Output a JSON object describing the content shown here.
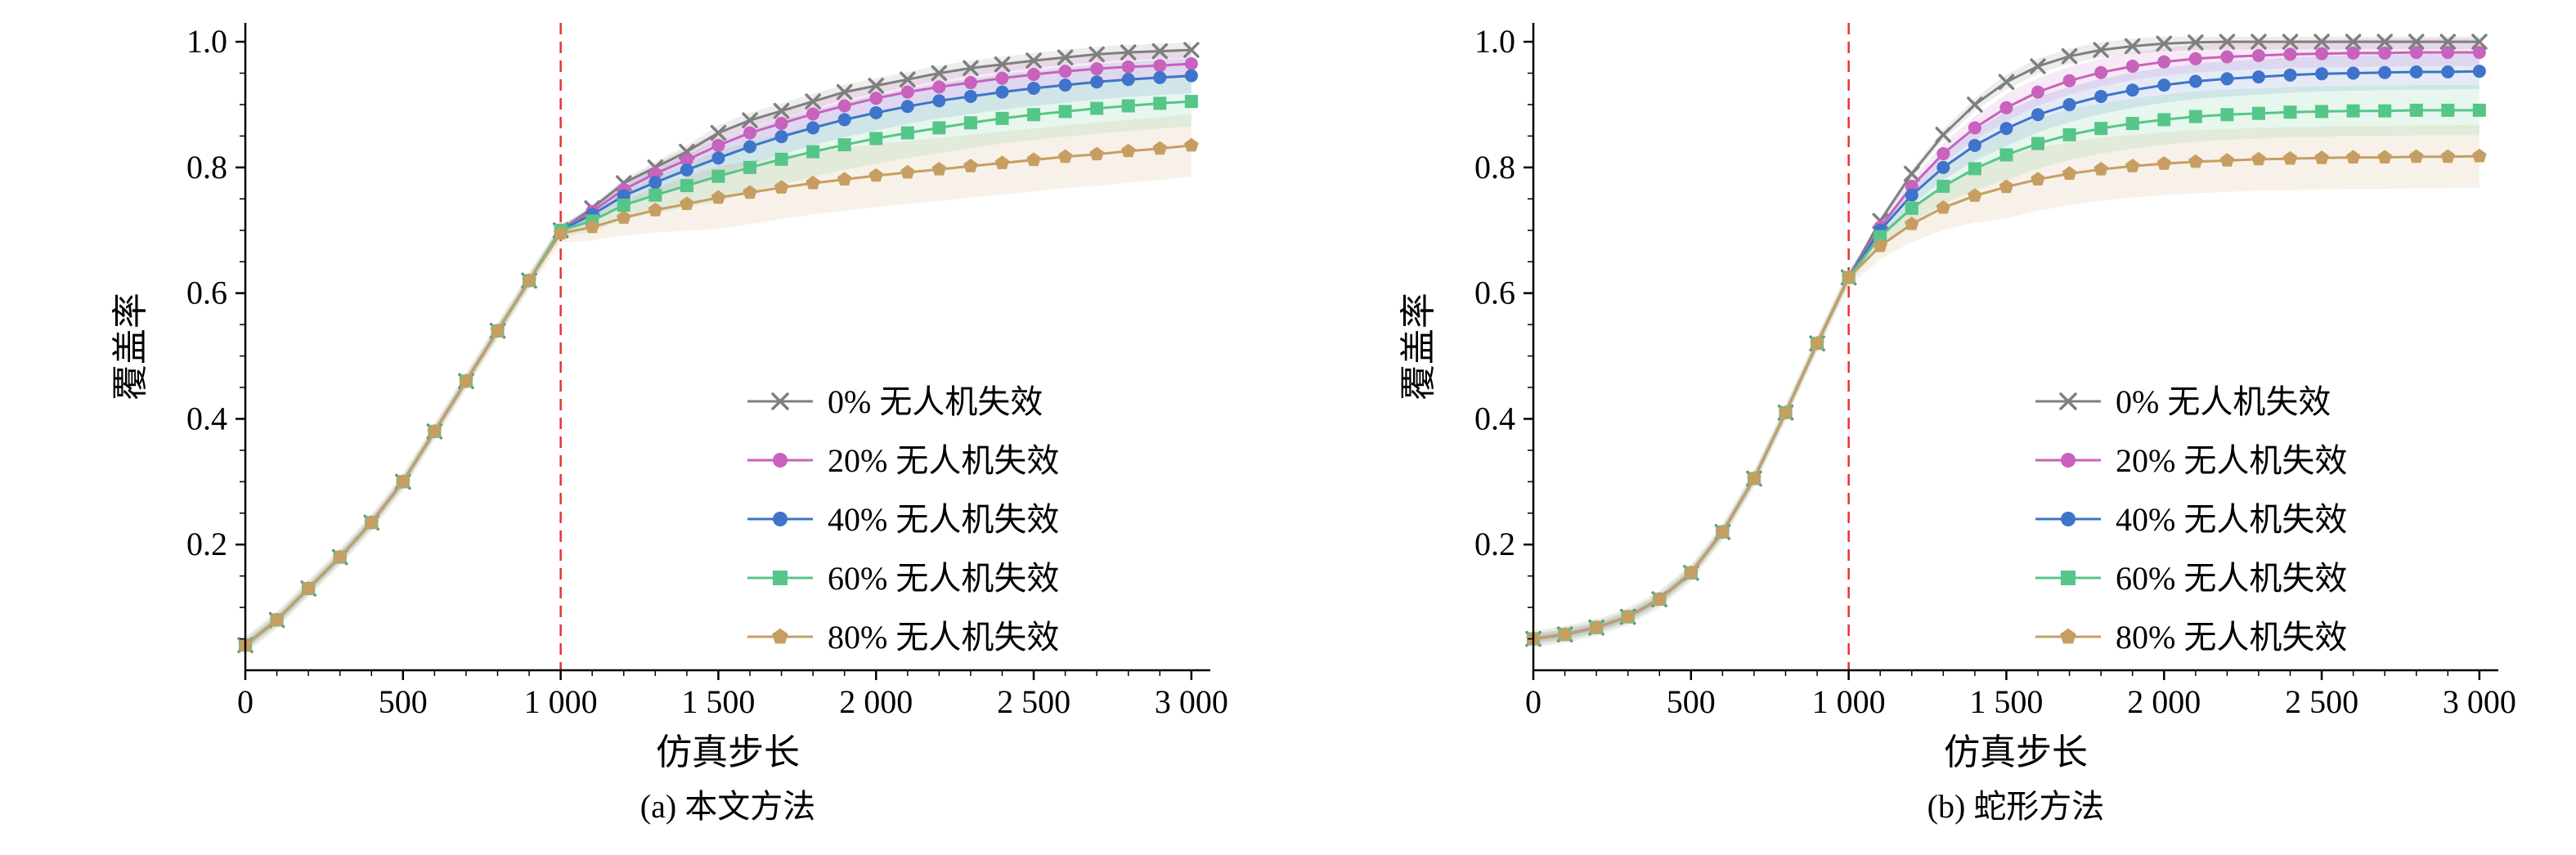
{
  "figure": {
    "background": "#ffffff"
  },
  "chart_data": [
    {
      "type": "line",
      "subtitle": "(a) 本文方法",
      "xlabel": "仿真步长",
      "ylabel": "覆盖率",
      "xlim": [
        0,
        3000
      ],
      "ylim": [
        0,
        1.0
      ],
      "xticks": [
        0,
        500,
        1000,
        1500,
        2000,
        2500,
        3000
      ],
      "xtick_labels": [
        "0",
        "500",
        "1 000",
        "1 500",
        "2 000",
        "2 500",
        "3 000"
      ],
      "yticks": [
        0.2,
        0.4,
        0.6,
        0.8,
        1.0
      ],
      "ytick_labels": [
        "0.2",
        "0.4",
        "0.6",
        "0.8",
        "1.0"
      ],
      "grid": false,
      "legend_position": "lower right",
      "vline": {
        "x": 1000,
        "color": "#e5332e",
        "style": "dashed"
      },
      "x": [
        0,
        100,
        200,
        300,
        400,
        500,
        600,
        700,
        800,
        900,
        1000,
        1100,
        1200,
        1300,
        1400,
        1500,
        1600,
        1700,
        1800,
        1900,
        2000,
        2100,
        2200,
        2300,
        2400,
        2500,
        2600,
        2700,
        2800,
        2900,
        3000
      ],
      "series": [
        {
          "name": "0% 无人机失效",
          "color": "#7f7f7f",
          "marker": "x",
          "band": 0.012,
          "values": [
            0.04,
            0.08,
            0.13,
            0.18,
            0.235,
            0.3,
            0.38,
            0.46,
            0.54,
            0.62,
            0.7,
            0.735,
            0.775,
            0.8,
            0.825,
            0.855,
            0.875,
            0.89,
            0.905,
            0.92,
            0.93,
            0.94,
            0.95,
            0.958,
            0.964,
            0.97,
            0.975,
            0.98,
            0.983,
            0.985,
            0.987
          ]
        },
        {
          "name": "20% 无人机失效",
          "color": "#c862bd",
          "marker": "circle",
          "band": 0.022,
          "values": [
            0.04,
            0.08,
            0.13,
            0.18,
            0.235,
            0.3,
            0.38,
            0.46,
            0.54,
            0.62,
            0.7,
            0.73,
            0.765,
            0.79,
            0.812,
            0.835,
            0.855,
            0.87,
            0.885,
            0.898,
            0.91,
            0.92,
            0.928,
            0.935,
            0.942,
            0.948,
            0.953,
            0.957,
            0.96,
            0.962,
            0.965
          ]
        },
        {
          "name": "40% 无人机失效",
          "color": "#3e74c9",
          "marker": "circle",
          "band": 0.028,
          "values": [
            0.04,
            0.08,
            0.13,
            0.18,
            0.235,
            0.3,
            0.38,
            0.46,
            0.54,
            0.62,
            0.7,
            0.725,
            0.755,
            0.776,
            0.796,
            0.815,
            0.833,
            0.849,
            0.863,
            0.876,
            0.887,
            0.897,
            0.906,
            0.913,
            0.92,
            0.926,
            0.931,
            0.936,
            0.94,
            0.943,
            0.946
          ]
        },
        {
          "name": "60% 无人机失效",
          "color": "#55c688",
          "marker": "square",
          "band": 0.04,
          "values": [
            0.04,
            0.08,
            0.13,
            0.18,
            0.235,
            0.3,
            0.38,
            0.46,
            0.54,
            0.62,
            0.7,
            0.715,
            0.74,
            0.756,
            0.771,
            0.786,
            0.8,
            0.813,
            0.825,
            0.836,
            0.846,
            0.855,
            0.863,
            0.871,
            0.878,
            0.884,
            0.889,
            0.894,
            0.898,
            0.902,
            0.905
          ]
        },
        {
          "name": "80% 无人机失效",
          "color": "#c79e62",
          "marker": "pentagon",
          "band": 0.05,
          "values": [
            0.04,
            0.08,
            0.13,
            0.18,
            0.235,
            0.3,
            0.38,
            0.46,
            0.54,
            0.62,
            0.695,
            0.705,
            0.72,
            0.732,
            0.742,
            0.752,
            0.76,
            0.768,
            0.775,
            0.781,
            0.787,
            0.792,
            0.797,
            0.802,
            0.807,
            0.812,
            0.817,
            0.821,
            0.826,
            0.83,
            0.835
          ]
        }
      ]
    },
    {
      "type": "line",
      "subtitle": "(b) 蛇形方法",
      "xlabel": "仿真步长",
      "ylabel": "覆盖率",
      "xlim": [
        0,
        3000
      ],
      "ylim": [
        0,
        1.0
      ],
      "xticks": [
        0,
        500,
        1000,
        1500,
        2000,
        2500,
        3000
      ],
      "xtick_labels": [
        "0",
        "500",
        "1 000",
        "1 500",
        "2 000",
        "2 500",
        "3 000"
      ],
      "yticks": [
        0.2,
        0.4,
        0.6,
        0.8,
        1.0
      ],
      "ytick_labels": [
        "0.2",
        "0.4",
        "0.6",
        "0.8",
        "1.0"
      ],
      "grid": false,
      "legend_position": "lower right",
      "vline": {
        "x": 1000,
        "color": "#e5332e",
        "style": "dashed"
      },
      "x": [
        0,
        100,
        200,
        300,
        400,
        500,
        600,
        700,
        800,
        900,
        1000,
        1100,
        1200,
        1300,
        1400,
        1500,
        1600,
        1700,
        1800,
        1900,
        2000,
        2100,
        2200,
        2300,
        2400,
        2500,
        2600,
        2700,
        2800,
        2900,
        3000
      ],
      "series": [
        {
          "name": "0% 无人机失效",
          "color": "#7f7f7f",
          "marker": "x",
          "band": 0.012,
          "values": [
            0.05,
            0.057,
            0.068,
            0.085,
            0.113,
            0.155,
            0.22,
            0.305,
            0.41,
            0.52,
            0.625,
            0.715,
            0.79,
            0.852,
            0.9,
            0.936,
            0.961,
            0.977,
            0.987,
            0.993,
            0.997,
            0.999,
            1.0,
            1.0,
            1.0,
            1.0,
            1.0,
            1.0,
            1.0,
            1.0,
            1.0
          ]
        },
        {
          "name": "20% 无人机失效",
          "color": "#c862bd",
          "marker": "circle",
          "band": 0.022,
          "values": [
            0.05,
            0.057,
            0.068,
            0.085,
            0.113,
            0.155,
            0.22,
            0.305,
            0.41,
            0.52,
            0.625,
            0.705,
            0.77,
            0.822,
            0.863,
            0.895,
            0.92,
            0.938,
            0.951,
            0.961,
            0.968,
            0.973,
            0.976,
            0.978,
            0.98,
            0.981,
            0.982,
            0.982,
            0.983,
            0.983,
            0.983
          ]
        },
        {
          "name": "40% 无人机失效",
          "color": "#3e74c9",
          "marker": "circle",
          "band": 0.028,
          "values": [
            0.05,
            0.057,
            0.068,
            0.085,
            0.113,
            0.155,
            0.22,
            0.305,
            0.41,
            0.52,
            0.625,
            0.7,
            0.756,
            0.8,
            0.835,
            0.862,
            0.884,
            0.9,
            0.913,
            0.923,
            0.931,
            0.937,
            0.941,
            0.944,
            0.947,
            0.949,
            0.95,
            0.951,
            0.952,
            0.952,
            0.953
          ]
        },
        {
          "name": "60% 无人机失效",
          "color": "#55c688",
          "marker": "square",
          "band": 0.04,
          "values": [
            0.05,
            0.057,
            0.068,
            0.085,
            0.113,
            0.155,
            0.22,
            0.305,
            0.41,
            0.52,
            0.625,
            0.69,
            0.735,
            0.77,
            0.798,
            0.82,
            0.838,
            0.852,
            0.862,
            0.87,
            0.876,
            0.881,
            0.884,
            0.886,
            0.888,
            0.889,
            0.89,
            0.89,
            0.891,
            0.891,
            0.891
          ]
        },
        {
          "name": "80% 无人机失效",
          "color": "#c79e62",
          "marker": "pentagon",
          "band": 0.05,
          "values": [
            0.05,
            0.057,
            0.068,
            0.085,
            0.113,
            0.155,
            0.22,
            0.305,
            0.41,
            0.52,
            0.625,
            0.675,
            0.71,
            0.736,
            0.755,
            0.769,
            0.781,
            0.79,
            0.797,
            0.802,
            0.806,
            0.809,
            0.811,
            0.813,
            0.814,
            0.815,
            0.816,
            0.816,
            0.817,
            0.817,
            0.818
          ]
        }
      ]
    }
  ]
}
